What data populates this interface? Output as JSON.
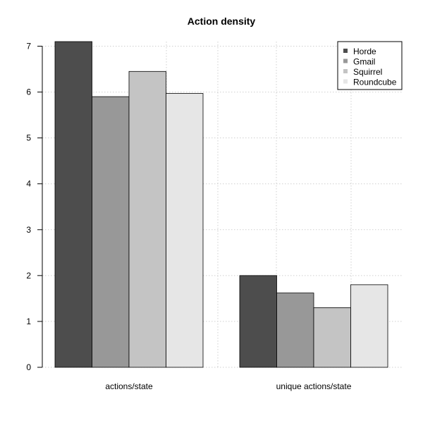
{
  "chart_data": {
    "type": "bar",
    "title": "Action density",
    "xlabel": "",
    "ylabel": "",
    "categories": [
      "actions/state",
      "unique actions/state"
    ],
    "series": [
      {
        "name": "Horde",
        "color": "#4d4d4d",
        "values": [
          7.1,
          2.0
        ]
      },
      {
        "name": "Gmail",
        "color": "#989898",
        "values": [
          5.9,
          1.62
        ]
      },
      {
        "name": "Squirrel",
        "color": "#c4c4c4",
        "values": [
          6.45,
          1.3
        ]
      },
      {
        "name": "Roundcube",
        "color": "#e6e6e6",
        "values": [
          5.97,
          1.8
        ]
      }
    ],
    "ylim": [
      0,
      7.1
    ],
    "yticks": [
      0,
      1,
      2,
      3,
      4,
      5,
      6,
      7
    ],
    "grid": true,
    "legend_position": "top-right"
  }
}
